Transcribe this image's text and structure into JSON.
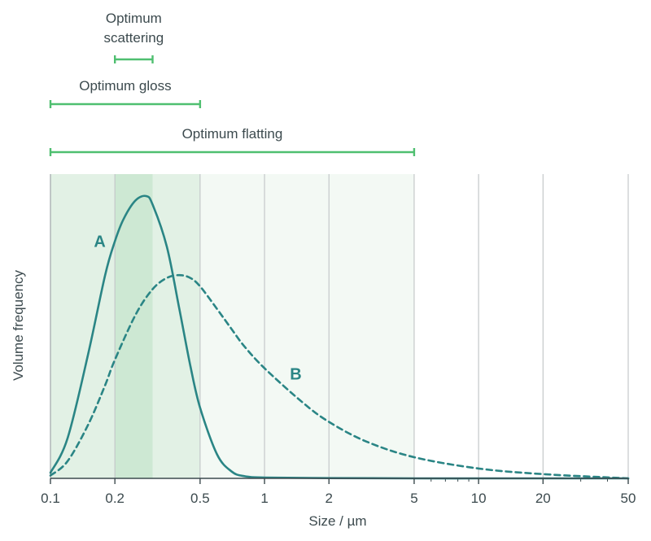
{
  "chart_data": {
    "type": "line",
    "xscale": "log",
    "xlim": [
      0.1,
      50
    ],
    "xlabel": "Size / µm",
    "ylabel": "Volume frequency",
    "xticks": [
      0.1,
      0.2,
      0.5,
      1,
      2,
      5,
      10,
      20,
      50
    ],
    "xtick_labels": [
      "0.1",
      "0.2",
      "0.5",
      "1",
      "2",
      "5",
      "10",
      "20",
      "50"
    ],
    "grid": {
      "vertical": true,
      "horizontal": false
    },
    "ranges": [
      {
        "label": "Optimum scattering",
        "from": 0.2,
        "to": 0.3
      },
      {
        "label": "Optimum gloss",
        "from": 0.1,
        "to": 0.5
      },
      {
        "label": "Optimum flatting",
        "from": 0.1,
        "to": 5
      }
    ],
    "series": [
      {
        "name": "A",
        "style": "solid",
        "color": "#2a8585",
        "x": [
          0.1,
          0.12,
          0.15,
          0.18,
          0.2,
          0.22,
          0.25,
          0.28,
          0.3,
          0.35,
          0.4,
          0.45,
          0.5,
          0.6,
          0.7,
          0.8,
          1,
          2,
          5,
          10,
          20,
          50
        ],
        "y": [
          0.02,
          0.14,
          0.44,
          0.72,
          0.84,
          0.92,
          0.985,
          1.0,
          0.97,
          0.82,
          0.6,
          0.4,
          0.25,
          0.085,
          0.025,
          0.008,
          0.003,
          0.001,
          0.0,
          0.0,
          0.0,
          0.0
        ]
      },
      {
        "name": "B",
        "style": "dashed",
        "color": "#2a8585",
        "x": [
          0.1,
          0.12,
          0.15,
          0.18,
          0.2,
          0.25,
          0.3,
          0.35,
          0.4,
          0.45,
          0.5,
          0.6,
          0.7,
          0.8,
          1,
          1.5,
          2,
          3,
          5,
          10,
          20,
          50
        ],
        "y": [
          0.01,
          0.06,
          0.19,
          0.33,
          0.42,
          0.58,
          0.67,
          0.71,
          0.72,
          0.71,
          0.68,
          0.6,
          0.53,
          0.47,
          0.39,
          0.27,
          0.2,
          0.13,
          0.075,
          0.035,
          0.015,
          0.0
        ]
      }
    ]
  },
  "colors": {
    "curve": "#2a8585",
    "range_bar": "#4fbf70",
    "shade_flatting": "#f3f9f4",
    "shade_gloss": "#e2f1e5",
    "shade_scattering": "#cde8d3",
    "grid": "#c4c8ca",
    "axis": "#3c4a4e",
    "text": "#3c4a4e"
  }
}
